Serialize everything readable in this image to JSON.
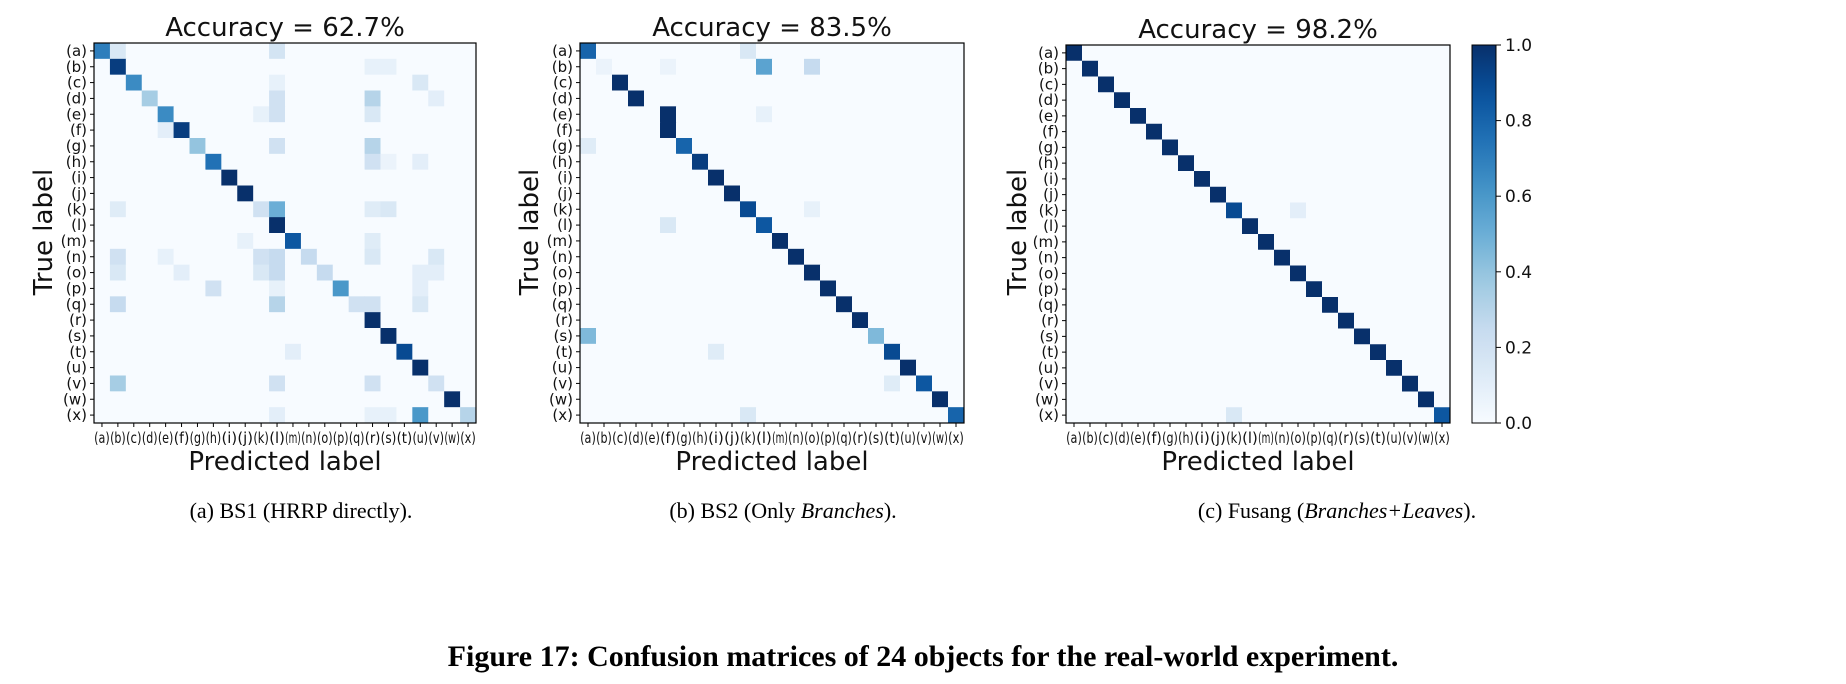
{
  "chart_data": [
    {
      "type": "heatmap",
      "title": "Accuracy = 62.7%",
      "xlabel": "Predicted label",
      "ylabel": "True label",
      "labels": [
        "(a)",
        "(b)",
        "(c)",
        "(d)",
        "(e)",
        "(f)",
        "(g)",
        "(h)",
        "(i)",
        "(j)",
        "(k)",
        "(l)",
        "(m)",
        "(n)",
        "(o)",
        "(p)",
        "(q)",
        "(r)",
        "(s)",
        "(t)",
        "(u)",
        "(v)",
        "(w)",
        "(x)"
      ],
      "colormap": "Blues",
      "vrange": [
        0,
        1
      ],
      "diagonal": [
        0.7,
        0.95,
        0.65,
        0.35,
        0.65,
        0.95,
        0.4,
        0.75,
        1.0,
        1.0,
        0.2,
        1.0,
        0.85,
        0.25,
        0.25,
        0.6,
        0.2,
        1.0,
        1.0,
        0.9,
        1.0,
        0.2,
        1.0,
        0.3
      ],
      "off_diagonal": [
        [
          0,
          1,
          0.15
        ],
        [
          0,
          11,
          0.18
        ],
        [
          1,
          17,
          0.08
        ],
        [
          1,
          18,
          0.08
        ],
        [
          2,
          11,
          0.08
        ],
        [
          2,
          20,
          0.15
        ],
        [
          3,
          11,
          0.2
        ],
        [
          3,
          17,
          0.3
        ],
        [
          3,
          21,
          0.1
        ],
        [
          4,
          11,
          0.2
        ],
        [
          4,
          17,
          0.15
        ],
        [
          4,
          10,
          0.08
        ],
        [
          5,
          4,
          0.1
        ],
        [
          6,
          11,
          0.2
        ],
        [
          6,
          17,
          0.3
        ],
        [
          7,
          17,
          0.2
        ],
        [
          7,
          20,
          0.1
        ],
        [
          7,
          18,
          0.06
        ],
        [
          10,
          1,
          0.12
        ],
        [
          10,
          11,
          0.5
        ],
        [
          10,
          17,
          0.12
        ],
        [
          10,
          18,
          0.15
        ],
        [
          12,
          9,
          0.08
        ],
        [
          12,
          17,
          0.12
        ],
        [
          13,
          1,
          0.2
        ],
        [
          13,
          10,
          0.2
        ],
        [
          13,
          11,
          0.25
        ],
        [
          13,
          17,
          0.15
        ],
        [
          13,
          21,
          0.15
        ],
        [
          13,
          4,
          0.08
        ],
        [
          14,
          1,
          0.15
        ],
        [
          14,
          5,
          0.1
        ],
        [
          14,
          10,
          0.15
        ],
        [
          14,
          11,
          0.25
        ],
        [
          14,
          20,
          0.1
        ],
        [
          14,
          21,
          0.1
        ],
        [
          15,
          7,
          0.2
        ],
        [
          15,
          11,
          0.08
        ],
        [
          15,
          20,
          0.1
        ],
        [
          16,
          1,
          0.25
        ],
        [
          16,
          11,
          0.3
        ],
        [
          16,
          17,
          0.2
        ],
        [
          16,
          20,
          0.15
        ],
        [
          19,
          12,
          0.1
        ],
        [
          21,
          1,
          0.35
        ],
        [
          21,
          11,
          0.2
        ],
        [
          21,
          17,
          0.2
        ],
        [
          23,
          11,
          0.1
        ],
        [
          23,
          17,
          0.08
        ],
        [
          23,
          18,
          0.08
        ],
        [
          23,
          20,
          0.6
        ]
      ]
    },
    {
      "type": "heatmap",
      "title": "Accuracy = 83.5%",
      "xlabel": "Predicted label",
      "ylabel": "True label",
      "labels": [
        "(a)",
        "(b)",
        "(c)",
        "(d)",
        "(e)",
        "(f)",
        "(g)",
        "(h)",
        "(i)",
        "(j)",
        "(k)",
        "(l)",
        "(m)",
        "(n)",
        "(o)",
        "(p)",
        "(q)",
        "(r)",
        "(s)",
        "(t)",
        "(u)",
        "(v)",
        "(w)",
        "(x)"
      ],
      "colormap": "Blues",
      "vrange": [
        0,
        1
      ],
      "diagonal": [
        0.8,
        0.06,
        1.0,
        1.0,
        0.0,
        1.0,
        0.8,
        0.95,
        1.0,
        1.0,
        0.9,
        0.85,
        1.0,
        1.0,
        1.0,
        1.0,
        1.0,
        1.0,
        0.45,
        0.9,
        1.0,
        0.85,
        1.0,
        0.8
      ],
      "off_diagonal": [
        [
          0,
          10,
          0.15
        ],
        [
          1,
          11,
          0.55
        ],
        [
          1,
          14,
          0.25
        ],
        [
          1,
          5,
          0.06
        ],
        [
          4,
          5,
          1.0
        ],
        [
          4,
          11,
          0.08
        ],
        [
          6,
          0,
          0.12
        ],
        [
          10,
          14,
          0.08
        ],
        [
          11,
          5,
          0.15
        ],
        [
          18,
          0,
          0.45
        ],
        [
          19,
          8,
          0.12
        ],
        [
          21,
          19,
          0.12
        ],
        [
          23,
          10,
          0.15
        ]
      ]
    },
    {
      "type": "heatmap",
      "title": "Accuracy = 98.2%",
      "xlabel": "Predicted label",
      "ylabel": "True label",
      "labels": [
        "(a)",
        "(b)",
        "(c)",
        "(d)",
        "(e)",
        "(f)",
        "(g)",
        "(h)",
        "(i)",
        "(j)",
        "(k)",
        "(l)",
        "(m)",
        "(n)",
        "(o)",
        "(p)",
        "(q)",
        "(r)",
        "(s)",
        "(t)",
        "(u)",
        "(v)",
        "(w)",
        "(x)"
      ],
      "colormap": "Blues",
      "vrange": [
        0,
        1
      ],
      "diagonal": [
        1.0,
        1.0,
        1.0,
        1.0,
        1.0,
        1.0,
        1.0,
        1.0,
        1.0,
        1.0,
        0.9,
        1.0,
        1.0,
        1.0,
        1.0,
        1.0,
        1.0,
        1.0,
        1.0,
        1.0,
        1.0,
        1.0,
        1.0,
        0.85
      ],
      "off_diagonal": [
        [
          10,
          14,
          0.1
        ],
        [
          23,
          10,
          0.15
        ]
      ]
    }
  ],
  "colorbar": {
    "ticks": [
      "1.0",
      "0.8",
      "0.6",
      "0.4",
      "0.2",
      "0.0"
    ],
    "tick_values": [
      1.0,
      0.8,
      0.6,
      0.4,
      0.2,
      0.0
    ]
  },
  "captions": {
    "a": "(a)  BS1 (HRRP directly).",
    "b_prefix": "(b)  BS2 (Only ",
    "b_italic": "Branches",
    "b_suffix": ").",
    "c_prefix": "(c)  Fusang (",
    "c_italic": "Branches+Leaves",
    "c_suffix": ")."
  },
  "figure_caption": "Figure 17: Confusion matrices of 24 objects for the real-world experiment."
}
